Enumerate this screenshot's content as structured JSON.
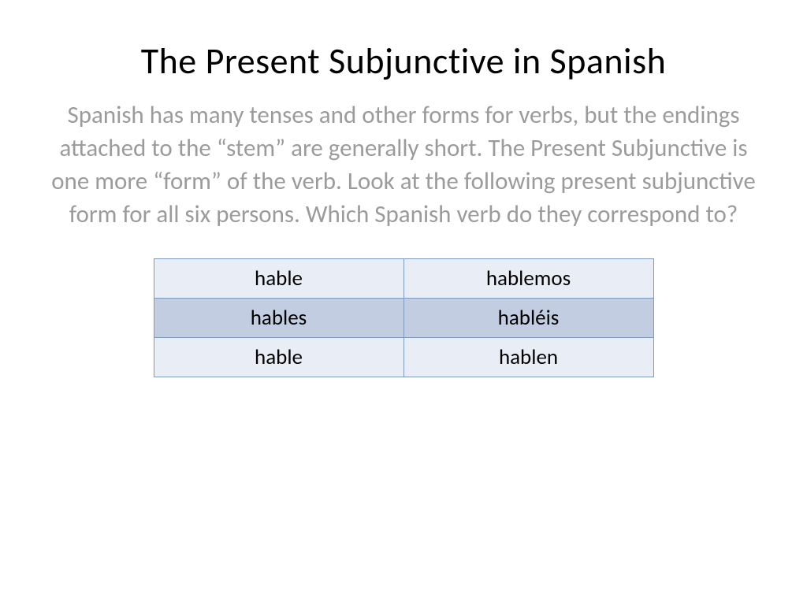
{
  "slide": {
    "title": "The Present Subjunctive in Spanish",
    "body": "Spanish has many tenses and other forms for verbs, but the endings attached to the “stem” are generally short.  The Present Subjunctive is one more “form” of the verb.  Look at the following present subjunctive form for all six persons.  Which Spanish verb do they correspond to?"
  },
  "table": {
    "rows": [
      {
        "left": "hable",
        "right": "hablemos",
        "bg": "#e9edf5"
      },
      {
        "left": "hables",
        "right": "habléis",
        "bg": "#c3cde2"
      },
      {
        "left": "hable",
        "right": "hablen",
        "bg": "#e9edf5"
      }
    ],
    "border_color": "#7d9bc1",
    "cell_fontsize": 27,
    "text_color": "#000000"
  },
  "styles": {
    "title_color": "#000000",
    "title_fontsize": 46,
    "body_color": "#9b9b9b",
    "body_fontsize": 31,
    "background": "#ffffff"
  }
}
